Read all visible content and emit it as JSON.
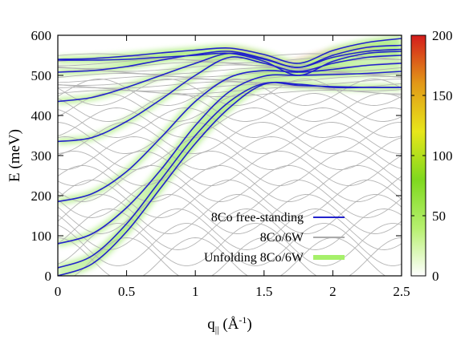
{
  "chart_data": {
    "type": "line",
    "title": "",
    "xlabel": "q",
    "xlabel_sub": "||",
    "xlabel_unit_open": " (Å",
    "xlabel_unit_sup": "-1",
    "xlabel_unit_close": ")",
    "ylabel": "E (meV)",
    "xlim": [
      0,
      2.5
    ],
    "ylim": [
      0,
      600
    ],
    "xticks": [
      {
        "v": 0,
        "label": "0"
      },
      {
        "v": 0.5,
        "label": "0.5"
      },
      {
        "v": 1,
        "label": "1"
      },
      {
        "v": 1.5,
        "label": "1.5"
      },
      {
        "v": 2,
        "label": "2"
      },
      {
        "v": 2.5,
        "label": "2.5"
      }
    ],
    "yticks": [
      {
        "v": 0,
        "label": "0"
      },
      {
        "v": 100,
        "label": "100"
      },
      {
        "v": 200,
        "label": "200"
      },
      {
        "v": 300,
        "label": "300"
      },
      {
        "v": 400,
        "label": "400"
      },
      {
        "v": 500,
        "label": "500"
      },
      {
        "v": 600,
        "label": "600"
      }
    ],
    "colorbar": {
      "range": [
        0,
        200
      ],
      "ticks": [
        {
          "v": 0,
          "label": "0"
        },
        {
          "v": 50,
          "label": "50"
        },
        {
          "v": 100,
          "label": "100"
        },
        {
          "v": 150,
          "label": "150"
        },
        {
          "v": 200,
          "label": "200"
        }
      ],
      "stops": [
        "#ffffff",
        "#b6f06e",
        "#7fd81e",
        "#e7e61a",
        "#e29818",
        "#d41c1c"
      ]
    },
    "legend": {
      "position": "lower-right",
      "entries": [
        {
          "label": "8Co free-standing",
          "color": "#2222cc"
        },
        {
          "label": "8Co/6W",
          "color": "#aaaaaa"
        },
        {
          "label": "Unfolding 8Co/6W",
          "color": "#a6f06a"
        }
      ]
    },
    "series": [
      {
        "style": "free",
        "x": [
          0,
          0.25,
          0.5,
          0.75,
          1,
          1.25,
          1.5,
          1.75,
          2,
          2.25,
          2.5
        ],
        "y": [
          0,
          30,
          110,
          220,
          330,
          420,
          478,
          478,
          470,
          470,
          470
        ]
      },
      {
        "style": "free",
        "x": [
          0,
          0.25,
          0.5,
          0.75,
          1,
          1.25,
          1.5,
          1.75,
          2,
          2.25,
          2.5
        ],
        "y": [
          20,
          50,
          130,
          240,
          350,
          435,
          480,
          475,
          472,
          470,
          470
        ]
      },
      {
        "style": "free",
        "x": [
          0,
          0.25,
          0.5,
          0.75,
          1,
          1.25,
          1.5,
          1.75,
          2,
          2.25,
          2.5
        ],
        "y": [
          80,
          105,
          170,
          265,
          375,
          460,
          498,
          500,
          502,
          505,
          510
        ]
      },
      {
        "style": "free",
        "x": [
          0,
          0.25,
          0.5,
          0.75,
          1,
          1.25,
          1.5,
          1.75,
          2,
          2.25,
          2.5
        ],
        "y": [
          185,
          205,
          260,
          345,
          435,
          495,
          512,
          508,
          515,
          525,
          530
        ]
      },
      {
        "style": "free",
        "x": [
          0,
          0.25,
          0.5,
          0.75,
          1,
          1.25,
          1.5,
          1.75,
          2,
          2.25,
          2.5
        ],
        "y": [
          335,
          345,
          385,
          440,
          500,
          545,
          530,
          510,
          530,
          545,
          550
        ]
      },
      {
        "style": "free",
        "x": [
          0,
          0.25,
          0.5,
          0.75,
          1,
          1.25,
          1.5,
          1.75,
          2,
          2.25,
          2.5
        ],
        "y": [
          435,
          445,
          470,
          500,
          530,
          555,
          540,
          520,
          545,
          560,
          565
        ]
      },
      {
        "style": "free",
        "x": [
          0,
          0.25,
          0.5,
          0.75,
          1,
          1.25,
          1.5,
          1.75,
          2,
          2.25,
          2.5
        ],
        "y": [
          508,
          512,
          522,
          538,
          552,
          560,
          542,
          520,
          550,
          570,
          575
        ]
      },
      {
        "style": "free",
        "x": [
          0,
          0.25,
          0.5,
          0.75,
          1,
          1.25,
          1.5,
          1.75,
          2,
          2.25,
          2.5
        ],
        "y": [
          540,
          542,
          548,
          556,
          563,
          568,
          552,
          530,
          562,
          582,
          592
        ]
      },
      {
        "style": "free",
        "x": [
          0,
          0.25,
          0.5,
          0.75,
          1,
          1.25,
          1.5,
          1.75,
          2,
          2.25,
          2.5
        ],
        "y": [
          538,
          538,
          540,
          545,
          550,
          555,
          535,
          500,
          535,
          555,
          560
        ]
      }
    ]
  }
}
